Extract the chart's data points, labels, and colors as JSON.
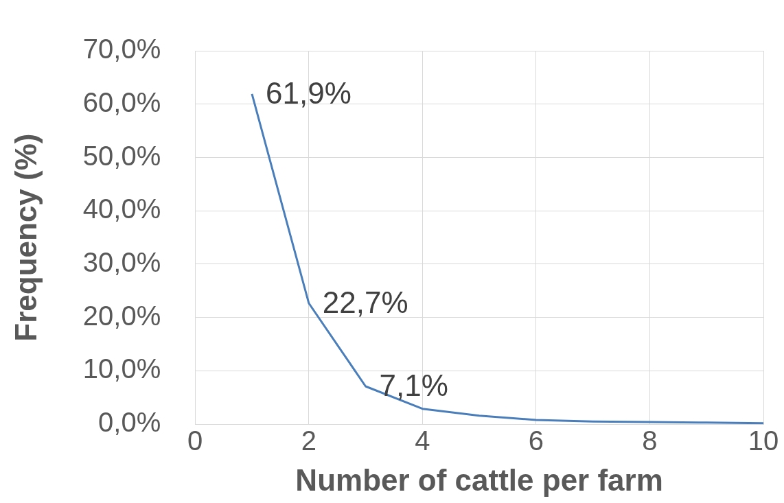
{
  "chart_data": {
    "type": "line",
    "xlabel": "Number of cattle per farm",
    "ylabel": "Frequency (%)",
    "x": [
      1,
      2,
      3,
      4,
      5,
      6,
      7,
      8,
      9,
      10
    ],
    "series": [
      {
        "color": "#4a7ebb",
        "values": [
          61.9,
          22.7,
          7.1,
          2.9,
          1.6,
          0.8,
          0.5,
          0.4,
          0.3,
          0.2
        ],
        "value_labels": [
          "61,9%",
          "22,7%",
          "7,1%",
          null,
          null,
          null,
          null,
          null,
          null,
          null
        ]
      }
    ],
    "xlim": [
      0,
      10
    ],
    "xticks": [
      0,
      2,
      4,
      6,
      8,
      10
    ],
    "ylim": [
      0,
      70
    ],
    "yticks": [
      {
        "value": 0,
        "label": "0,0%"
      },
      {
        "value": 10,
        "label": "10,0%"
      },
      {
        "value": 20,
        "label": "20,0%"
      },
      {
        "value": 30,
        "label": "30,0%"
      },
      {
        "value": 40,
        "label": "40,0%"
      },
      {
        "value": 50,
        "label": "50,0%"
      },
      {
        "value": 60,
        "label": "60,0%"
      },
      {
        "value": 70,
        "label": "70,0%"
      }
    ],
    "grid": true,
    "legend": false,
    "marker": "none",
    "line_style": "solid"
  }
}
